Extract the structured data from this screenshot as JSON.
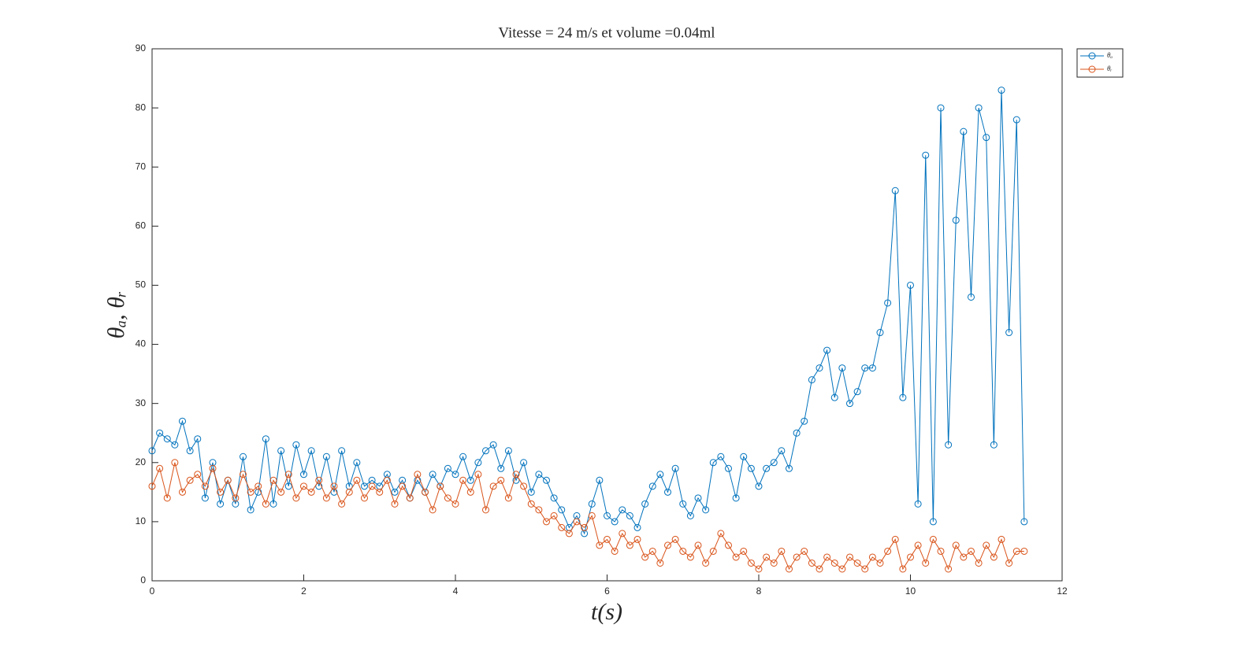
{
  "chart_data": {
    "type": "line",
    "title": "Vitesse = 24 m/s et volume =0.04ml",
    "x_label": "t(s)",
    "y_label": "θₐ, θᵣ",
    "x": [
      0,
      0.1,
      0.2,
      0.3,
      0.4,
      0.5,
      0.6,
      0.7,
      0.8,
      0.9,
      1,
      1.1,
      1.2,
      1.3,
      1.4,
      1.5,
      1.6,
      1.7,
      1.8,
      1.9,
      2,
      2.1,
      2.2,
      2.3,
      2.4,
      2.5,
      2.6,
      2.7,
      2.8,
      2.9,
      3,
      3.1,
      3.2,
      3.3,
      3.4,
      3.5,
      3.6,
      3.7,
      3.8,
      3.9,
      4,
      4.1,
      4.2,
      4.3,
      4.4,
      4.5,
      4.6,
      4.7,
      4.8,
      4.9,
      5,
      5.1,
      5.2,
      5.3,
      5.4,
      5.5,
      5.6,
      5.7,
      5.8,
      5.9,
      6,
      6.1,
      6.2,
      6.3,
      6.4,
      6.5,
      6.6,
      6.7,
      6.8,
      6.9,
      7,
      7.1,
      7.2,
      7.3,
      7.4,
      7.5,
      7.6,
      7.7,
      7.8,
      7.9,
      8,
      8.1,
      8.2,
      8.3,
      8.4,
      8.5,
      8.6,
      8.7,
      8.8,
      8.9,
      9,
      9.1,
      9.2,
      9.3,
      9.4,
      9.5,
      9.6,
      9.7,
      9.8,
      9.9,
      10,
      10.1,
      10.2,
      10.3,
      10.4,
      10.5,
      10.6,
      10.7,
      10.8,
      10.9,
      11,
      11.1,
      11.2,
      11.3,
      11.4,
      11.5
    ],
    "series": [
      {
        "name": "θₐ",
        "color": "#0072bd",
        "values": [
          22,
          25,
          24,
          23,
          27,
          22,
          24,
          14,
          20,
          13,
          17,
          13,
          21,
          12,
          15,
          24,
          13,
          22,
          16,
          23,
          18,
          22,
          16,
          21,
          15,
          22,
          16,
          20,
          16,
          17,
          16,
          18,
          15,
          17,
          14,
          17,
          15,
          18,
          16,
          19,
          18,
          21,
          17,
          20,
          22,
          23,
          19,
          22,
          17,
          20,
          15,
          18,
          17,
          14,
          12,
          9,
          11,
          8,
          13,
          17,
          11,
          10,
          12,
          11,
          9,
          13,
          16,
          18,
          15,
          19,
          13,
          11,
          14,
          12,
          20,
          21,
          19,
          14,
          21,
          19,
          16,
          19,
          20,
          22,
          19,
          25,
          27,
          34,
          36,
          39,
          31,
          36,
          30,
          32,
          36,
          36,
          42,
          47,
          66,
          31,
          50,
          13,
          72,
          10,
          80,
          23,
          61,
          76,
          48,
          80,
          75,
          23,
          83,
          42,
          78,
          10
        ]
      },
      {
        "name": "θᵣ",
        "color": "#d95319",
        "values": [
          16,
          19,
          14,
          20,
          15,
          17,
          18,
          16,
          19,
          15,
          17,
          14,
          18,
          15,
          16,
          13,
          17,
          15,
          18,
          14,
          16,
          15,
          17,
          14,
          16,
          13,
          15,
          17,
          14,
          16,
          15,
          17,
          13,
          16,
          14,
          18,
          15,
          12,
          16,
          14,
          13,
          17,
          15,
          18,
          12,
          16,
          17,
          14,
          18,
          16,
          13,
          12,
          10,
          11,
          9,
          8,
          10,
          9,
          11,
          6,
          7,
          5,
          8,
          6,
          7,
          4,
          5,
          3,
          6,
          7,
          5,
          4,
          6,
          3,
          5,
          8,
          6,
          4,
          5,
          3,
          2,
          4,
          3,
          5,
          2,
          4,
          5,
          3,
          2,
          4,
          3,
          2,
          4,
          3,
          2,
          4,
          3,
          5,
          7,
          2,
          4,
          6,
          3,
          7,
          5,
          2,
          6,
          4,
          5,
          3,
          6,
          4,
          7,
          3,
          5,
          5
        ]
      }
    ],
    "xlim": [
      0,
      12
    ],
    "xticks": [
      0,
      2,
      4,
      6,
      8,
      10,
      12
    ],
    "ylim": [
      0,
      90
    ],
    "yticks": [
      0,
      10,
      20,
      30,
      40,
      50,
      60,
      70,
      80,
      90
    ],
    "grid": false,
    "legend": "northeastoutside",
    "markers": "circle"
  }
}
